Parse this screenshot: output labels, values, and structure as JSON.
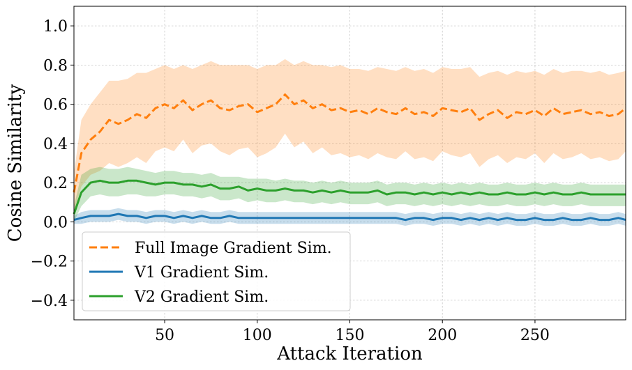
{
  "chart_data": {
    "type": "line",
    "title": "",
    "xlabel": "Attack Iteration",
    "ylabel": "Cosine Similarity",
    "xlim": [
      1,
      299
    ],
    "ylim": [
      -0.5,
      1.1
    ],
    "xticks": [
      50,
      100,
      150,
      200,
      250
    ],
    "xtick_labels": [
      "50",
      "100",
      "150",
      "200",
      "250"
    ],
    "yticks": [
      -0.4,
      -0.2,
      0.0,
      0.2,
      0.4,
      0.6,
      0.8,
      1.0
    ],
    "ytick_labels": [
      "−0.4",
      "−0.2",
      "0.0",
      "0.2",
      "0.4",
      "0.6",
      "0.8",
      "1.0"
    ],
    "grid": true,
    "legend_position": "lower-left",
    "series": [
      {
        "name": "Full Image Gradient Sim.",
        "color": "#ff7f0e",
        "line_style": "dashed",
        "x": [
          1,
          5,
          10,
          15,
          20,
          25,
          30,
          35,
          40,
          45,
          50,
          55,
          60,
          65,
          70,
          75,
          80,
          85,
          90,
          95,
          100,
          105,
          110,
          115,
          120,
          125,
          130,
          135,
          140,
          145,
          150,
          155,
          160,
          165,
          170,
          175,
          180,
          185,
          190,
          195,
          200,
          205,
          210,
          215,
          220,
          225,
          230,
          235,
          240,
          245,
          250,
          255,
          260,
          265,
          270,
          275,
          280,
          285,
          290,
          295,
          299
        ],
        "mean": [
          0.15,
          0.35,
          0.42,
          0.46,
          0.52,
          0.5,
          0.52,
          0.55,
          0.53,
          0.58,
          0.6,
          0.58,
          0.62,
          0.57,
          0.6,
          0.62,
          0.58,
          0.57,
          0.59,
          0.6,
          0.56,
          0.58,
          0.6,
          0.65,
          0.6,
          0.62,
          0.58,
          0.6,
          0.57,
          0.58,
          0.56,
          0.57,
          0.55,
          0.58,
          0.56,
          0.55,
          0.58,
          0.55,
          0.56,
          0.54,
          0.58,
          0.57,
          0.56,
          0.58,
          0.52,
          0.55,
          0.57,
          0.53,
          0.56,
          0.55,
          0.57,
          0.54,
          0.58,
          0.55,
          0.56,
          0.57,
          0.55,
          0.56,
          0.54,
          0.55,
          0.58
        ],
        "upper": [
          0.25,
          0.52,
          0.6,
          0.66,
          0.72,
          0.72,
          0.73,
          0.76,
          0.76,
          0.78,
          0.8,
          0.78,
          0.8,
          0.78,
          0.8,
          0.82,
          0.8,
          0.8,
          0.8,
          0.8,
          0.78,
          0.8,
          0.8,
          0.83,
          0.8,
          0.82,
          0.8,
          0.8,
          0.79,
          0.8,
          0.78,
          0.78,
          0.77,
          0.79,
          0.78,
          0.77,
          0.79,
          0.77,
          0.78,
          0.76,
          0.79,
          0.78,
          0.78,
          0.79,
          0.74,
          0.76,
          0.77,
          0.75,
          0.77,
          0.76,
          0.77,
          0.75,
          0.78,
          0.76,
          0.77,
          0.77,
          0.76,
          0.77,
          0.75,
          0.76,
          0.77
        ],
        "lower": [
          0.05,
          0.18,
          0.24,
          0.26,
          0.3,
          0.28,
          0.3,
          0.33,
          0.3,
          0.36,
          0.38,
          0.36,
          0.42,
          0.35,
          0.39,
          0.4,
          0.36,
          0.34,
          0.37,
          0.38,
          0.33,
          0.35,
          0.38,
          0.45,
          0.38,
          0.41,
          0.35,
          0.38,
          0.34,
          0.35,
          0.33,
          0.34,
          0.32,
          0.35,
          0.33,
          0.32,
          0.36,
          0.32,
          0.33,
          0.31,
          0.36,
          0.34,
          0.33,
          0.35,
          0.28,
          0.32,
          0.34,
          0.3,
          0.33,
          0.32,
          0.35,
          0.3,
          0.35,
          0.32,
          0.33,
          0.35,
          0.32,
          0.33,
          0.31,
          0.32,
          0.36
        ]
      },
      {
        "name": "V1 Gradient Sim.",
        "color": "#1f77b4",
        "line_style": "solid",
        "x": [
          1,
          5,
          10,
          15,
          20,
          25,
          30,
          35,
          40,
          45,
          50,
          55,
          60,
          65,
          70,
          75,
          80,
          85,
          90,
          95,
          100,
          105,
          110,
          115,
          120,
          125,
          130,
          135,
          140,
          145,
          150,
          155,
          160,
          165,
          170,
          175,
          180,
          185,
          190,
          195,
          200,
          205,
          210,
          215,
          220,
          225,
          230,
          235,
          240,
          245,
          250,
          255,
          260,
          265,
          270,
          275,
          280,
          285,
          290,
          295,
          299
        ],
        "mean": [
          0.01,
          0.02,
          0.03,
          0.03,
          0.03,
          0.04,
          0.03,
          0.03,
          0.02,
          0.03,
          0.03,
          0.02,
          0.03,
          0.02,
          0.03,
          0.02,
          0.02,
          0.03,
          0.02,
          0.02,
          0.02,
          0.02,
          0.02,
          0.02,
          0.02,
          0.02,
          0.02,
          0.02,
          0.02,
          0.02,
          0.02,
          0.02,
          0.02,
          0.02,
          0.02,
          0.02,
          0.01,
          0.02,
          0.02,
          0.01,
          0.02,
          0.02,
          0.01,
          0.02,
          0.01,
          0.02,
          0.01,
          0.02,
          0.01,
          0.01,
          0.02,
          0.01,
          0.01,
          0.02,
          0.01,
          0.01,
          0.02,
          0.01,
          0.01,
          0.02,
          0.01
        ],
        "upper": [
          0.03,
          0.05,
          0.06,
          0.06,
          0.06,
          0.07,
          0.06,
          0.06,
          0.05,
          0.06,
          0.06,
          0.05,
          0.06,
          0.05,
          0.06,
          0.05,
          0.05,
          0.06,
          0.05,
          0.05,
          0.05,
          0.05,
          0.05,
          0.05,
          0.05,
          0.05,
          0.05,
          0.05,
          0.05,
          0.05,
          0.05,
          0.05,
          0.05,
          0.05,
          0.05,
          0.05,
          0.04,
          0.05,
          0.05,
          0.04,
          0.05,
          0.05,
          0.04,
          0.05,
          0.04,
          0.05,
          0.04,
          0.05,
          0.04,
          0.04,
          0.05,
          0.04,
          0.04,
          0.05,
          0.04,
          0.04,
          0.05,
          0.04,
          0.04,
          0.05,
          0.04
        ],
        "lower": [
          -0.01,
          -0.01,
          0.0,
          0.0,
          0.0,
          0.01,
          0.0,
          0.0,
          -0.01,
          0.0,
          0.0,
          -0.01,
          0.0,
          -0.01,
          0.0,
          -0.01,
          -0.01,
          0.0,
          -0.01,
          -0.01,
          -0.01,
          -0.01,
          -0.01,
          -0.01,
          -0.01,
          -0.01,
          -0.01,
          -0.01,
          -0.01,
          -0.01,
          -0.01,
          -0.01,
          -0.01,
          -0.01,
          -0.01,
          -0.01,
          -0.02,
          -0.01,
          -0.01,
          -0.02,
          -0.01,
          -0.01,
          -0.02,
          -0.01,
          -0.02,
          -0.01,
          -0.02,
          -0.01,
          -0.02,
          -0.02,
          -0.01,
          -0.02,
          -0.02,
          -0.01,
          -0.02,
          -0.02,
          -0.01,
          -0.02,
          -0.02,
          -0.01,
          -0.02
        ]
      },
      {
        "name": "V2 Gradient Sim.",
        "color": "#2ca02c",
        "line_style": "solid",
        "x": [
          1,
          5,
          10,
          15,
          20,
          25,
          30,
          35,
          40,
          45,
          50,
          55,
          60,
          65,
          70,
          75,
          80,
          85,
          90,
          95,
          100,
          105,
          110,
          115,
          120,
          125,
          130,
          135,
          140,
          145,
          150,
          155,
          160,
          165,
          170,
          175,
          180,
          185,
          190,
          195,
          200,
          205,
          210,
          215,
          220,
          225,
          230,
          235,
          240,
          245,
          250,
          255,
          260,
          265,
          270,
          275,
          280,
          285,
          290,
          295,
          299
        ],
        "mean": [
          0.04,
          0.15,
          0.2,
          0.21,
          0.2,
          0.2,
          0.21,
          0.21,
          0.2,
          0.19,
          0.2,
          0.2,
          0.19,
          0.19,
          0.18,
          0.19,
          0.17,
          0.17,
          0.18,
          0.16,
          0.17,
          0.16,
          0.16,
          0.17,
          0.16,
          0.16,
          0.15,
          0.16,
          0.15,
          0.16,
          0.15,
          0.15,
          0.15,
          0.16,
          0.14,
          0.15,
          0.15,
          0.14,
          0.15,
          0.14,
          0.15,
          0.14,
          0.15,
          0.14,
          0.15,
          0.14,
          0.14,
          0.15,
          0.14,
          0.14,
          0.15,
          0.14,
          0.15,
          0.14,
          0.14,
          0.15,
          0.14,
          0.14,
          0.14,
          0.14,
          0.14
        ],
        "upper": [
          0.08,
          0.24,
          0.27,
          0.28,
          0.27,
          0.27,
          0.28,
          0.27,
          0.26,
          0.25,
          0.26,
          0.26,
          0.25,
          0.25,
          0.24,
          0.25,
          0.23,
          0.23,
          0.23,
          0.22,
          0.22,
          0.22,
          0.21,
          0.22,
          0.21,
          0.21,
          0.2,
          0.21,
          0.2,
          0.21,
          0.2,
          0.2,
          0.2,
          0.21,
          0.19,
          0.2,
          0.2,
          0.19,
          0.2,
          0.19,
          0.2,
          0.19,
          0.2,
          0.19,
          0.2,
          0.19,
          0.19,
          0.2,
          0.19,
          0.19,
          0.2,
          0.19,
          0.2,
          0.19,
          0.19,
          0.2,
          0.19,
          0.19,
          0.19,
          0.19,
          0.19
        ],
        "lower": [
          0.0,
          0.08,
          0.13,
          0.14,
          0.13,
          0.13,
          0.14,
          0.14,
          0.13,
          0.13,
          0.14,
          0.14,
          0.13,
          0.13,
          0.12,
          0.13,
          0.11,
          0.11,
          0.12,
          0.1,
          0.11,
          0.1,
          0.1,
          0.11,
          0.1,
          0.1,
          0.09,
          0.1,
          0.09,
          0.1,
          0.09,
          0.09,
          0.09,
          0.1,
          0.08,
          0.09,
          0.09,
          0.08,
          0.09,
          0.08,
          0.09,
          0.08,
          0.09,
          0.08,
          0.09,
          0.08,
          0.08,
          0.09,
          0.08,
          0.08,
          0.09,
          0.08,
          0.09,
          0.08,
          0.08,
          0.09,
          0.08,
          0.08,
          0.08,
          0.08,
          0.08
        ]
      }
    ]
  }
}
